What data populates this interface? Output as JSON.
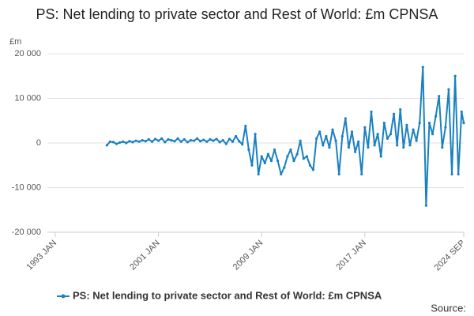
{
  "chart_data": {
    "type": "line",
    "title": "PS: Net lending to private sector and Rest of World: £m CPNSA",
    "y_unit": "£m",
    "source": "Source:",
    "x": [
      "1997 JAN",
      "1997 APR",
      "1997 JUL",
      "1997 OCT",
      "1998 JAN",
      "1998 APR",
      "1998 JUL",
      "1998 OCT",
      "1999 JAN",
      "1999 APR",
      "1999 JUL",
      "1999 OCT",
      "2000 JAN",
      "2000 APR",
      "2000 JUL",
      "2000 OCT",
      "2001 JAN",
      "2001 APR",
      "2001 JUL",
      "2001 OCT",
      "2002 JAN",
      "2002 APR",
      "2002 JUL",
      "2002 OCT",
      "2003 JAN",
      "2003 APR",
      "2003 JUL",
      "2003 OCT",
      "2004 JAN",
      "2004 APR",
      "2004 JUL",
      "2004 OCT",
      "2005 JAN",
      "2005 APR",
      "2005 JUL",
      "2005 OCT",
      "2006 JAN",
      "2006 APR",
      "2006 JUL",
      "2006 OCT",
      "2007 JAN",
      "2007 APR",
      "2007 JUL",
      "2007 OCT",
      "2008 JAN",
      "2008 APR",
      "2008 JUL",
      "2008 OCT",
      "2009 JAN",
      "2009 APR",
      "2009 JUL",
      "2009 OCT",
      "2010 JAN",
      "2010 APR",
      "2010 JUL",
      "2010 OCT",
      "2011 JAN",
      "2011 APR",
      "2011 JUL",
      "2011 OCT",
      "2012 JAN",
      "2012 APR",
      "2012 JUL",
      "2012 OCT",
      "2013 JAN",
      "2013 APR",
      "2013 JUL",
      "2013 OCT",
      "2014 JAN",
      "2014 APR",
      "2014 JUL",
      "2014 OCT",
      "2015 JAN",
      "2015 APR",
      "2015 JUL",
      "2015 OCT",
      "2016 JAN",
      "2016 APR",
      "2016 JUL",
      "2016 OCT",
      "2017 JAN",
      "2017 APR",
      "2017 JUL",
      "2017 OCT",
      "2018 JAN",
      "2018 APR",
      "2018 JUL",
      "2018 OCT",
      "2019 JAN",
      "2019 APR",
      "2019 JUL",
      "2019 OCT",
      "2020 JAN",
      "2020 APR",
      "2020 JUL",
      "2020 OCT",
      "2021 JAN",
      "2021 APR",
      "2021 JUL",
      "2021 OCT",
      "2022 JAN",
      "2022 APR",
      "2022 JUL",
      "2022 OCT",
      "2023 JAN",
      "2023 APR",
      "2023 JUL",
      "2023 OCT",
      "2024 JAN",
      "2024 APR",
      "2024 JUL",
      "2024 SEP"
    ],
    "series": [
      {
        "name": "PS: Net lending to private sector and Rest of World: £m CPNSA",
        "color": "#1a80c0",
        "values": [
          -500,
          300,
          200,
          -200,
          100,
          300,
          0,
          400,
          200,
          500,
          300,
          600,
          400,
          800,
          300,
          900,
          500,
          1000,
          200,
          800,
          600,
          400,
          1000,
          300,
          800,
          200,
          600,
          500,
          1000,
          400,
          700,
          300,
          800,
          500,
          900,
          200,
          600,
          -200,
          900,
          300,
          1500,
          400,
          -300,
          3800,
          -1500,
          -5000,
          2000,
          -7000,
          -3000,
          -4500,
          -2500,
          -4000,
          -1500,
          -4000,
          -7000,
          -5500,
          -3000,
          -1500,
          -4000,
          -2500,
          500,
          -3500,
          -3000,
          -5000,
          -6000,
          1000,
          2500,
          -500,
          1500,
          -1000,
          3000,
          500,
          -7000,
          1500,
          5500,
          -1000,
          2500,
          -2000,
          300,
          -7000,
          3500,
          -1000,
          7000,
          -500,
          2000,
          -3000,
          4500,
          1000,
          2000,
          6500,
          -500,
          7500,
          -1000,
          4000,
          -500,
          3000,
          500,
          4500,
          17000,
          -14000,
          4500,
          2000,
          6000,
          10500,
          -1000,
          3500,
          12000,
          -7000,
          15000,
          -7000,
          7000,
          4500
        ]
      }
    ],
    "xlim": [
      "1993 JAN",
      "2024 SEP"
    ],
    "xticks": [
      "1993 JAN",
      "2001 JAN",
      "2009 JAN",
      "2017 JAN",
      "2024 SEP"
    ],
    "ylim": [
      -20000,
      20000
    ],
    "yticks": [
      {
        "value": -20000,
        "label": "-20 000"
      },
      {
        "value": -10000,
        "label": "-10 000"
      },
      0,
      {
        "value": 10000,
        "label": "10 000"
      },
      {
        "value": 20000,
        "label": "20 000"
      }
    ],
    "grid": true,
    "legend": "bottom"
  }
}
